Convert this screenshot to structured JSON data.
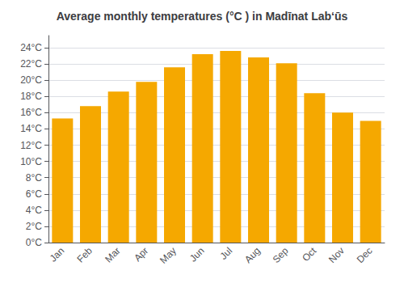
{
  "chart_data": {
    "type": "bar",
    "title": "Average monthly temperatures (°C ) in Madīnat Labʻūs",
    "categories": [
      "Jan",
      "Feb",
      "Mar",
      "Apr",
      "May",
      "Jun",
      "Jul",
      "Aug",
      "Sep",
      "Oct",
      "Nov",
      "Dec"
    ],
    "values": [
      15.3,
      16.8,
      18.6,
      19.8,
      21.6,
      23.2,
      23.6,
      22.8,
      22.1,
      18.4,
      16.0,
      15.0
    ],
    "color": "#F5A800",
    "ylim": [
      0,
      25.5
    ],
    "yticks": [
      {
        "value": 0,
        "label": "0°C"
      },
      {
        "value": 2,
        "label": "2°C"
      },
      {
        "value": 4,
        "label": "4°C"
      },
      {
        "value": 6,
        "label": "6°C"
      },
      {
        "value": 8,
        "label": "8°C"
      },
      {
        "value": 10,
        "label": "10°C"
      },
      {
        "value": 12,
        "label": "12°C"
      },
      {
        "value": 14,
        "label": "14°C"
      },
      {
        "value": 16,
        "label": "16°C"
      },
      {
        "value": 18,
        "label": "18°C"
      },
      {
        "value": 20,
        "label": "20°C"
      },
      {
        "value": 22,
        "label": "22°C"
      },
      {
        "value": 24,
        "label": "24°C"
      }
    ],
    "grid": true
  }
}
